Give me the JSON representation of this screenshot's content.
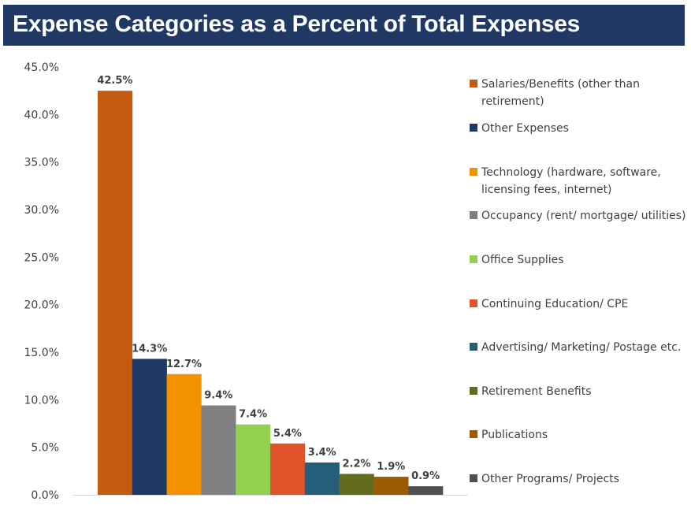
{
  "chart_data": {
    "type": "bar",
    "title": "Expense Categories as a Percent of Total Expenses",
    "xlabel": "",
    "ylabel": "",
    "ylim": [
      0,
      45
    ],
    "yticks": [
      "0.0%",
      "5.0%",
      "10.0%",
      "15.0%",
      "20.0%",
      "25.0%",
      "30.0%",
      "35.0%",
      "40.0%",
      "45.0%"
    ],
    "ytick_values": [
      0,
      5,
      10,
      15,
      20,
      25,
      30,
      35,
      40,
      45
    ],
    "grid": false,
    "legend_position": "right",
    "categories": [
      "Salaries/Benefits (other than retirement)",
      "Other Expenses",
      "Technology (hardware, software, licensing fees, internet)",
      "Occupancy (rent/ mortgage/ utilities)",
      "Office Supplies",
      "Continuing Education/ CPE",
      "Advertising/ Marketing/ Postage etc.",
      "Retirement Benefits",
      "Publications",
      "Other Programs/ Projects"
    ],
    "values": [
      42.5,
      14.3,
      12.7,
      9.4,
      7.4,
      5.4,
      3.4,
      2.2,
      1.9,
      0.9
    ],
    "data_labels": [
      "42.5%",
      "14.3%",
      "12.7%",
      "9.4%",
      "7.4%",
      "5.4%",
      "3.4%",
      "2.2%",
      "1.9%",
      "0.9%"
    ],
    "colors": [
      "#c55a11",
      "#1f3864",
      "#f39200",
      "#808080",
      "#92d050",
      "#e0532a",
      "#255e7a",
      "#636b1d",
      "#9c5b03",
      "#505050"
    ]
  },
  "header": {
    "title": "Expense Categories as a Percent of Total Expenses",
    "background": "#1f3864"
  }
}
